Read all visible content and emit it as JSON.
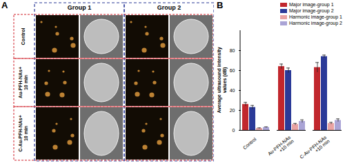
{
  "panel_labels": [
    "A",
    "B"
  ],
  "image_grid": {
    "columns": [
      "Group 1",
      "Group 2"
    ],
    "rows": [
      "Control",
      "Au-PFH-NAs+\n10 min",
      "C-Au-PFH-NAs+\n10 min"
    ]
  },
  "chart_data": {
    "type": "bar",
    "y_label": "Average ultrasound intensity\nvalues (dB)",
    "categories": [
      "Control",
      "Au-PFH-NAs\n+10 min",
      "C-Au-PFH-NAs\n+10 min"
    ],
    "series": [
      {
        "name": "Major image-group 1",
        "color": "#c1272d",
        "values": [
          26,
          64,
          63
        ],
        "errors": [
          2,
          2.5,
          5
        ]
      },
      {
        "name": "Major image-group 2",
        "color": "#2b3a98",
        "values": [
          23,
          60,
          74
        ],
        "errors": [
          2,
          2.5,
          1.5
        ]
      },
      {
        "name": "Harmonic image-group 1",
        "color": "#e9a3a3",
        "values": [
          2,
          6,
          7
        ],
        "errors": [
          0.5,
          1,
          1
        ]
      },
      {
        "name": "Harmonic image-group 2",
        "color": "#aaa4d6",
        "values": [
          3,
          9,
          10
        ],
        "errors": [
          0.5,
          1.5,
          1.5
        ]
      }
    ],
    "ylim": [
      0,
      100
    ],
    "yticks": [
      0,
      20,
      40,
      60,
      80
    ],
    "legend": "upper right"
  }
}
